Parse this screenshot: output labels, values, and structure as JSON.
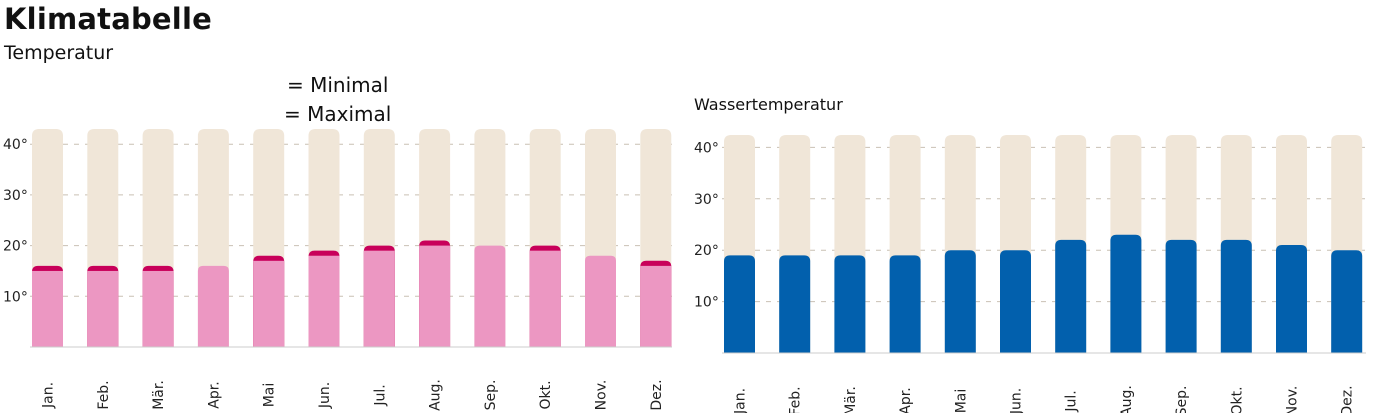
{
  "header": {
    "title": "Klimatabelle",
    "subtitle": "Temperatur"
  },
  "colors": {
    "track": "#f0e6d8",
    "air_min": "#ec97c2",
    "air_max": "#c8005a",
    "water": "#0260ad",
    "grid": "#c9c0b4",
    "baseline": "#cccccc"
  },
  "chart_data": [
    {
      "type": "bar",
      "categories": [
        "Jan.",
        "Feb.",
        "Mär.",
        "Apr.",
        "Mai",
        "Jun.",
        "Jul.",
        "Aug.",
        "Sep.",
        "Okt.",
        "Nov.",
        "Dez."
      ],
      "series": [
        {
          "name": "Minimal",
          "values": [
            15,
            15,
            15,
            16,
            17,
            18,
            19,
            20,
            20,
            19,
            18,
            16
          ]
        },
        {
          "name": "Maximal",
          "values": [
            16,
            16,
            16,
            16,
            18,
            19,
            20,
            21,
            20,
            20,
            18,
            17
          ]
        }
      ],
      "legend": [
        "= Minimal",
        "= Maximal"
      ],
      "yticks": [
        "10°",
        "20°",
        "30°",
        "40°"
      ],
      "ylim": [
        0,
        42
      ],
      "grid": true
    },
    {
      "type": "bar",
      "title": "Wassertemperatur",
      "categories": [
        "Jan.",
        "Feb.",
        "Mär.",
        "Apr.",
        "Mai",
        "Jun.",
        "Jul.",
        "Aug.",
        "Sep.",
        "Okt.",
        "Nov.",
        "Dez."
      ],
      "values": [
        19,
        19,
        19,
        19,
        20,
        20,
        22,
        23,
        22,
        22,
        21,
        20
      ],
      "yticks": [
        "10°",
        "20°",
        "30°",
        "40°"
      ],
      "ylim": [
        0,
        42
      ],
      "grid": true
    }
  ]
}
